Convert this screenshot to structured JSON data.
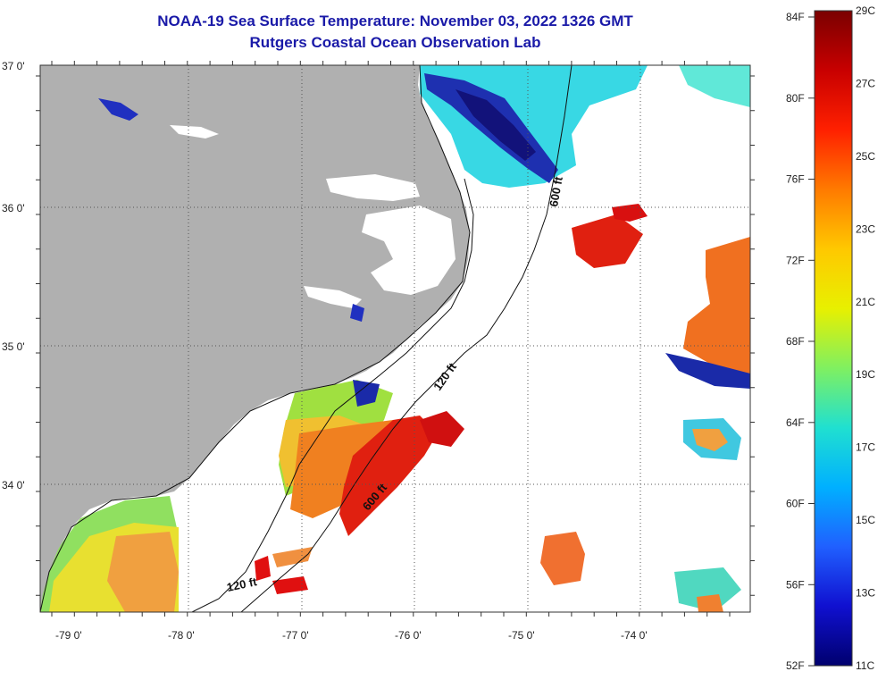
{
  "title": {
    "line1": "NOAA-19 Sea Surface Temperature:  November 03, 2022 1326 GMT",
    "line2": "Rutgers Coastal Ocean Observation Lab"
  },
  "latitude_labels": [
    "37 0'",
    "36 0'",
    "35 0'",
    "34 0'"
  ],
  "longitude_labels": [
    "-79 0'",
    "-78 0'",
    "-77 0'",
    "-76 0'",
    "-75 0'",
    "-74 0'"
  ],
  "contour_labels": {
    "label_600_north": "600 ft",
    "label_120_mid": "120 ft",
    "label_600_south": "600 ft",
    "label_120_south": "120 ft"
  },
  "colorbar": {
    "fahrenheit": [
      "84F",
      "80F",
      "76F",
      "72F",
      "68F",
      "64F",
      "60F",
      "56F",
      "52F"
    ],
    "celsius": [
      "29C",
      "27C",
      "25C",
      "23C",
      "21C",
      "19C",
      "17C",
      "15C",
      "13C",
      "11C"
    ],
    "gradient_top_to_bottom": [
      "#7a0000",
      "#c80000",
      "#ff2000",
      "#ff7a00",
      "#ffc800",
      "#e8f000",
      "#80f060",
      "#20e0d0",
      "#00b0ff",
      "#2060ff",
      "#1010d0",
      "#00006e"
    ]
  },
  "colors": {
    "land": "#b0b0b0",
    "ocean_nodata": "#ffffff",
    "title": "#1a1aa8",
    "cold_water": "#1a2aa8",
    "cool_water": "#40d8e0",
    "warm_water": "#f07020",
    "hot_water": "#e01010",
    "yellow_water": "#e8e030"
  }
}
